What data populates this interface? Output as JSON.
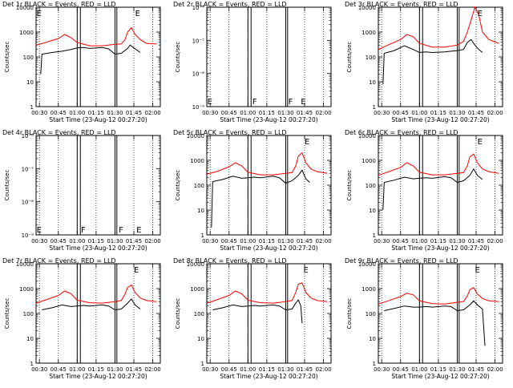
{
  "figure": {
    "xlabel": "Start Time (23-Aug-12 00:27:20)",
    "ylabel": "Counts/sec",
    "x_ticks": [
      "00:30",
      "00:45",
      "01:00",
      "01:15",
      "01:30",
      "01:45",
      "02:00"
    ],
    "colors": {
      "events": "#000000",
      "lld": "#ff0000",
      "axes": "#000000"
    }
  },
  "chart_data": [
    {
      "type": "line",
      "title": "Det 1r BLACK = Events, RED = LLD",
      "y_scale": "log",
      "ylim": [
        1,
        10000
      ],
      "y_ticks": [
        "1",
        "10",
        "100",
        "1000",
        "10000"
      ],
      "xlim": [
        "00:27:20",
        "02:06:00"
      ],
      "annotations": [
        {
          "text": "E",
          "x": "00:27:45"
        },
        {
          "text": "E",
          "x": "01:46:00"
        }
      ],
      "series": [
        {
          "name": "BLACK = Events",
          "x": [
            "00:31",
            "00:32",
            "00:40",
            "00:48",
            "00:55",
            "01:00",
            "01:05",
            "01:10",
            "01:20",
            "01:25",
            "01:30",
            "01:35",
            "01:40",
            "01:42",
            "01:45",
            "01:48",
            "01:50"
          ],
          "values": [
            20,
            130,
            150,
            170,
            200,
            230,
            240,
            220,
            240,
            210,
            130,
            140,
            220,
            300,
            230,
            180,
            150
          ]
        },
        {
          "name": "RED = LLD",
          "x": [
            "00:27:30",
            "00:35",
            "00:45",
            "00:50",
            "00:55",
            "01:00",
            "01:10",
            "01:20",
            "01:30",
            "01:35",
            "01:38",
            "01:40",
            "01:43",
            "01:46",
            "01:50",
            "01:55",
            "02:03"
          ],
          "values": [
            300,
            380,
            550,
            800,
            600,
            380,
            280,
            280,
            320,
            330,
            500,
            1000,
            1500,
            800,
            500,
            350,
            330
          ]
        }
      ],
      "gaps": [
        [
          "01:00",
          "01:02:30"
        ],
        [
          "01:30",
          "01:31:30"
        ]
      ]
    },
    {
      "type": "line",
      "title": "Det 2r BLACK = Events, RED = LLD",
      "y_scale": "log",
      "ylim": [
        1e-09,
        1e-06
      ],
      "y_ticks": [
        "10⁻⁹",
        "10⁻⁸",
        "10⁻⁷",
        "10⁻⁶"
      ],
      "xlim": [
        "00:27:20",
        "02:06:00"
      ],
      "annotations": [
        {
          "text": "E",
          "x": "00:27:45"
        },
        {
          "text": "F",
          "x": "01:03:30"
        },
        {
          "text": "F",
          "x": "01:32:00"
        },
        {
          "text": "E",
          "x": "01:42:00"
        }
      ],
      "series": [],
      "gaps": [
        [
          "01:00",
          "01:02:30"
        ],
        [
          "01:30",
          "01:31:30"
        ]
      ]
    },
    {
      "type": "line",
      "title": "Det 3r BLACK = Events, RED = LLD",
      "y_scale": "log",
      "ylim": [
        1,
        10000
      ],
      "y_ticks": [
        "1",
        "10",
        "100",
        "1000",
        "10000"
      ],
      "xlim": [
        "00:27:20",
        "02:06:00"
      ],
      "annotations": [
        {
          "text": "E",
          "x": "01:46:00"
        }
      ],
      "series": [
        {
          "name": "BLACK = Events",
          "x": [
            "00:31",
            "00:32",
            "00:40",
            "00:48",
            "00:55",
            "01:00",
            "01:05",
            "01:10",
            "01:20",
            "01:25",
            "01:30",
            "01:35",
            "01:38",
            "01:41",
            "01:44",
            "01:47",
            "01:50"
          ],
          "values": [
            8,
            140,
            180,
            280,
            200,
            150,
            160,
            150,
            160,
            170,
            180,
            200,
            380,
            500,
            300,
            200,
            150
          ]
        },
        {
          "name": "RED = LLD",
          "x": [
            "00:27:30",
            "00:35",
            "00:45",
            "00:50",
            "00:55",
            "01:00",
            "01:10",
            "01:20",
            "01:30",
            "01:35",
            "01:38",
            "01:41",
            "01:44",
            "01:47",
            "01:50",
            "01:55",
            "02:03"
          ],
          "values": [
            200,
            300,
            500,
            800,
            650,
            350,
            250,
            250,
            300,
            420,
            1000,
            3000,
            10000,
            5000,
            1000,
            500,
            350
          ]
        }
      ],
      "gaps": [
        [
          "01:00",
          "01:02:30"
        ],
        [
          "01:30",
          "01:31:30"
        ]
      ]
    },
    {
      "type": "line",
      "title": "Det 4r BLACK = Events, RED = LLD",
      "y_scale": "log",
      "ylim": [
        1e-09,
        1e-06
      ],
      "y_ticks": [
        "10⁻⁹",
        "10⁻⁸",
        "10⁻⁷",
        "10⁻⁶"
      ],
      "xlim": [
        "00:27:20",
        "02:06:00"
      ],
      "annotations": [
        {
          "text": "E",
          "x": "00:27:45"
        },
        {
          "text": "F",
          "x": "01:03:00"
        },
        {
          "text": "F",
          "x": "01:33:00"
        },
        {
          "text": "E",
          "x": "01:47:00"
        }
      ],
      "series": [],
      "gaps": [
        [
          "01:00",
          "01:02:30"
        ],
        [
          "01:30",
          "01:31:30"
        ]
      ]
    },
    {
      "type": "line",
      "title": "Det 5r BLACK = Events, RED = LLD",
      "y_scale": "log",
      "ylim": [
        1,
        10000
      ],
      "y_ticks": [
        "1",
        "10",
        "100",
        "1000",
        "10000"
      ],
      "xlim": [
        "00:27:20",
        "02:06:00"
      ],
      "annotations": [
        {
          "text": "E",
          "x": "01:45:00"
        }
      ],
      "series": [
        {
          "name": "BLACK = Events",
          "x": [
            "00:31",
            "00:32",
            "00:40",
            "00:48",
            "00:55",
            "01:00",
            "01:05",
            "01:10",
            "01:20",
            "01:25",
            "01:30",
            "01:35",
            "01:40",
            "01:43",
            "01:46",
            "01:49"
          ],
          "values": [
            2,
            140,
            170,
            230,
            190,
            200,
            210,
            200,
            230,
            200,
            120,
            150,
            250,
            400,
            180,
            130
          ]
        },
        {
          "name": "RED = LLD",
          "x": [
            "00:27:30",
            "00:35",
            "00:45",
            "00:50",
            "00:55",
            "01:00",
            "01:10",
            "01:20",
            "01:30",
            "01:35",
            "01:38",
            "01:40",
            "01:43",
            "01:46",
            "01:50",
            "01:55",
            "02:03"
          ],
          "values": [
            280,
            350,
            550,
            800,
            600,
            330,
            260,
            260,
            300,
            320,
            600,
            1500,
            2000,
            800,
            450,
            350,
            300
          ]
        }
      ],
      "gaps": [
        [
          "01:00",
          "01:02:30"
        ],
        [
          "01:30",
          "01:31:30"
        ]
      ]
    },
    {
      "type": "line",
      "title": "Det 6r BLACK = Events, RED = LLD",
      "y_scale": "log",
      "ylim": [
        1,
        10000
      ],
      "y_ticks": [
        "1",
        "10",
        "100",
        "1000",
        "10000"
      ],
      "xlim": [
        "00:27:20",
        "02:06:00"
      ],
      "annotations": [
        {
          "text": "E",
          "x": "01:46:00"
        }
      ],
      "series": [
        {
          "name": "BLACK = Events",
          "x": [
            "00:31",
            "00:32",
            "00:40",
            "00:48",
            "00:55",
            "01:00",
            "01:05",
            "01:10",
            "01:20",
            "01:25",
            "01:30",
            "01:35",
            "01:40",
            "01:43",
            "01:46",
            "01:50"
          ],
          "values": [
            10,
            130,
            160,
            210,
            180,
            190,
            200,
            190,
            220,
            200,
            130,
            150,
            250,
            450,
            250,
            170
          ]
        },
        {
          "name": "RED = LLD",
          "x": [
            "00:27:30",
            "00:35",
            "00:45",
            "00:50",
            "00:55",
            "01:00",
            "01:10",
            "01:20",
            "01:30",
            "01:35",
            "01:38",
            "01:40",
            "01:43",
            "01:46",
            "01:50",
            "01:55",
            "02:03"
          ],
          "values": [
            250,
            340,
            520,
            800,
            600,
            330,
            260,
            260,
            300,
            320,
            600,
            1400,
            1800,
            800,
            450,
            350,
            300
          ]
        }
      ],
      "gaps": [
        [
          "01:00",
          "01:02:30"
        ],
        [
          "01:30",
          "01:31:30"
        ]
      ]
    },
    {
      "type": "line",
      "title": "Det 7r BLACK = Events, RED = LLD",
      "y_scale": "log",
      "ylim": [
        1,
        10000
      ],
      "y_ticks": [
        "1",
        "10",
        "100",
        "1000",
        "10000"
      ],
      "xlim": [
        "00:27:20",
        "02:06:00"
      ],
      "annotations": [
        {
          "text": "E",
          "x": "01:45:00"
        }
      ],
      "series": [
        {
          "name": "BLACK = Events",
          "x": [
            "00:32",
            "00:40",
            "00:48",
            "00:55",
            "01:00",
            "01:05",
            "01:10",
            "01:20",
            "01:25",
            "01:30",
            "01:35",
            "01:40",
            "01:43",
            "01:46",
            "01:50"
          ],
          "values": [
            140,
            170,
            220,
            190,
            200,
            210,
            200,
            220,
            200,
            140,
            150,
            260,
            380,
            220,
            150
          ]
        },
        {
          "name": "RED = LLD",
          "x": [
            "00:27:30",
            "00:35",
            "00:45",
            "00:50",
            "00:55",
            "01:00",
            "01:10",
            "01:20",
            "01:30",
            "01:35",
            "01:38",
            "01:40",
            "01:43",
            "01:46",
            "01:50",
            "01:55",
            "02:03"
          ],
          "values": [
            260,
            350,
            530,
            800,
            620,
            340,
            270,
            260,
            300,
            330,
            600,
            1100,
            1400,
            700,
            420,
            330,
            300
          ]
        }
      ],
      "gaps": [
        [
          "01:00",
          "01:02:30"
        ],
        [
          "01:30",
          "01:31:30"
        ]
      ]
    },
    {
      "type": "line",
      "title": "Det 8r BLACK = Events, RED = LLD",
      "y_scale": "log",
      "ylim": [
        1,
        10000
      ],
      "y_ticks": [
        "1",
        "10",
        "100",
        "1000",
        "10000"
      ],
      "xlim": [
        "00:27:20",
        "02:06:00"
      ],
      "annotations": [
        {
          "text": "E",
          "x": "01:44:00"
        }
      ],
      "series": [
        {
          "name": "BLACK = Events",
          "x": [
            "00:32",
            "00:40",
            "00:48",
            "00:55",
            "01:00",
            "01:05",
            "01:10",
            "01:20",
            "01:25",
            "01:30",
            "01:35",
            "01:38",
            "01:40",
            "01:42",
            "01:43"
          ],
          "values": [
            140,
            170,
            220,
            190,
            200,
            210,
            200,
            220,
            200,
            140,
            150,
            260,
            350,
            200,
            40
          ]
        },
        {
          "name": "RED = LLD",
          "x": [
            "00:27:30",
            "00:35",
            "00:45",
            "00:50",
            "00:55",
            "01:00",
            "01:10",
            "01:20",
            "01:30",
            "01:35",
            "01:38",
            "01:40",
            "01:43",
            "01:46",
            "01:50",
            "01:55",
            "02:03"
          ],
          "values": [
            260,
            350,
            530,
            800,
            620,
            340,
            270,
            260,
            300,
            330,
            700,
            1500,
            1700,
            700,
            420,
            330,
            300
          ]
        }
      ],
      "gaps": [
        [
          "01:00",
          "01:02:30"
        ],
        [
          "01:30",
          "01:31:30"
        ]
      ]
    },
    {
      "type": "line",
      "title": "Det 9r BLACK = Events, RED = LLD",
      "y_scale": "log",
      "ylim": [
        1,
        10000
      ],
      "y_ticks": [
        "1",
        "10",
        "100",
        "1000",
        "10000"
      ],
      "xlim": [
        "00:27:20",
        "02:06:00"
      ],
      "annotations": [
        {
          "text": "E",
          "x": "01:44:00"
        }
      ],
      "series": [
        {
          "name": "BLACK = Events",
          "x": [
            "00:32",
            "00:40",
            "00:48",
            "00:55",
            "01:00",
            "01:05",
            "01:10",
            "01:20",
            "01:25",
            "01:30",
            "01:35",
            "01:40",
            "01:43",
            "01:46",
            "01:50",
            "01:52"
          ],
          "values": [
            130,
            160,
            200,
            180,
            180,
            190,
            180,
            200,
            190,
            130,
            140,
            220,
            320,
            220,
            150,
            5
          ]
        },
        {
          "name": "RED = LLD",
          "x": [
            "00:27:30",
            "00:35",
            "00:45",
            "00:50",
            "00:55",
            "01:00",
            "01:10",
            "01:20",
            "01:30",
            "01:35",
            "01:38",
            "01:40",
            "01:43",
            "01:46",
            "01:50",
            "01:55",
            "02:03"
          ],
          "values": [
            240,
            320,
            480,
            650,
            560,
            320,
            250,
            240,
            280,
            300,
            500,
            900,
            1100,
            600,
            400,
            320,
            300
          ]
        }
      ],
      "gaps": [
        [
          "01:00",
          "01:02:30"
        ],
        [
          "01:30",
          "01:31:30"
        ]
      ]
    }
  ]
}
